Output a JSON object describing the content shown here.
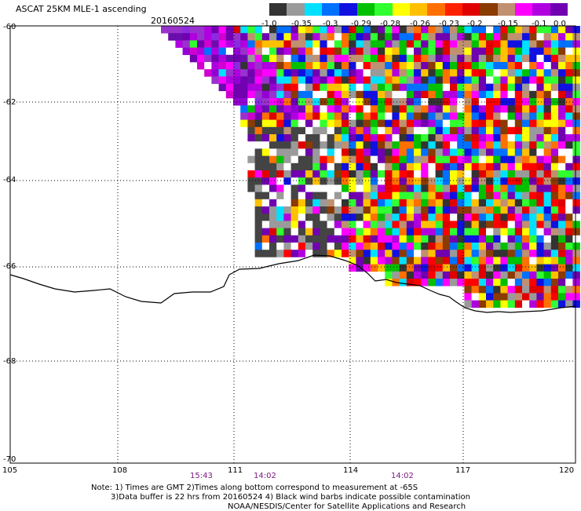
{
  "header": {
    "title": "ASCAT 25KM MLE-1 ascending",
    "date": "20160524"
  },
  "colorbar": {
    "colors": [
      "#333333",
      "#9a9a9a",
      "#00e0ff",
      "#0070ff",
      "#1010e0",
      "#00c000",
      "#30ff30",
      "#ffff00",
      "#ffc000",
      "#ff7000",
      "#ff2000",
      "#e00000",
      "#8b3a00",
      "#c09070",
      "#ff00ff",
      "#b000e0",
      "#7000b0"
    ],
    "labels": [
      "-1.0",
      "-0.35",
      "-0.3",
      "-0.29",
      "-0.28",
      "-0.26",
      "-0.23",
      "-0.2",
      "-0.15",
      "-0.1",
      "0.0"
    ]
  },
  "map": {
    "lat_labels": [
      "-60",
      "-62",
      "-64",
      "-66",
      "-68",
      "-70"
    ],
    "lon_labels": [
      "105",
      "108",
      "111",
      "114",
      "117",
      "120"
    ],
    "times": [
      "15:43",
      "14:02",
      "14:02"
    ]
  },
  "notes": {
    "line1": "Note: 1) Times are GMT 2)Times along bottom correspond to measurement at -65S",
    "line2": "3)Data buffer is 22 hrs from 20160524 4) Black wind barbs indicate possible contamination",
    "line3": "NOAA/NESDIS/Center for Satellite Applications and Research"
  }
}
